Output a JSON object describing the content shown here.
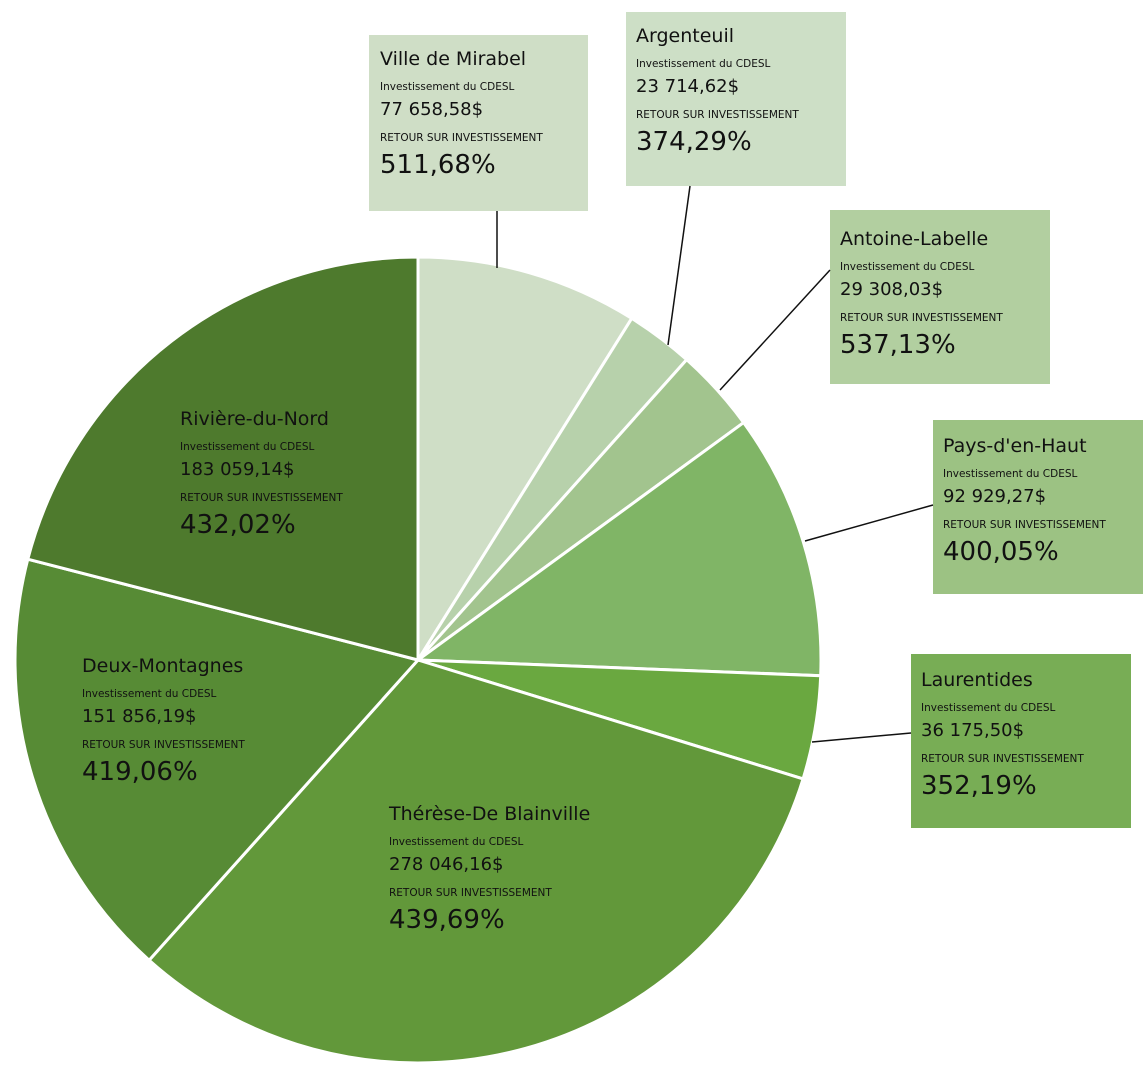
{
  "chart_data": {
    "type": "pie",
    "investment_label": "Investissement du CDESL",
    "return_label": "RETOUR SUR INVESTISSEMENT",
    "categories": [
      "Ville de Mirabel",
      "Argenteuil",
      "Antoine-Labelle",
      "Pays-d'en-Haut",
      "Laurentides",
      "Thérèse-De Blainville",
      "Deux-Montagnes",
      "Rivière-du-Nord"
    ],
    "values": [
      77658.58,
      23714.62,
      29308.03,
      92929.27,
      36175.5,
      278046.16,
      151856.19,
      183059.14
    ],
    "value_labels": [
      "77 658,58$",
      "23 714,62$",
      "29 308,03$",
      "92 929,27$",
      "36 175,50$",
      "278 046,16$",
      "151 856,19$",
      "183 059,14$"
    ],
    "roi_labels": [
      "511,68%",
      "374,29%",
      "537,13%",
      "400,05%",
      "352,19%",
      "439,69%",
      "419,06%",
      "432,02%"
    ],
    "colors": [
      "#cfdec6",
      "#b7d1ab",
      "#a2c48e",
      "#80b566",
      "#6aa840",
      "#62983a",
      "#578b35",
      "#4e7a2d"
    ]
  }
}
